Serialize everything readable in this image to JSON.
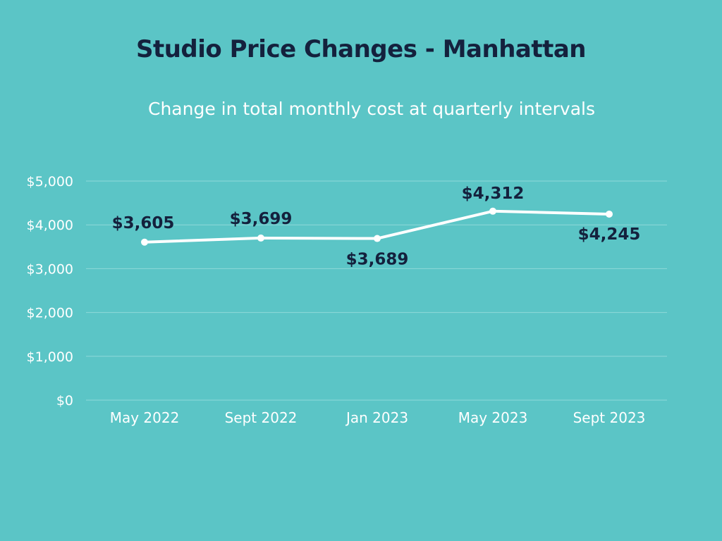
{
  "colors": {
    "background": "#5bc5c6",
    "title": "#14213d",
    "subtitle": "#ffffff",
    "line": "#ffffff",
    "grid": "#8fd9d9",
    "tick_text": "#ffffff",
    "data_label": "#14213d"
  },
  "chart_data": {
    "type": "line",
    "title": "Studio Price Changes - Manhattan",
    "subtitle": "Change in total monthly cost at quarterly intervals",
    "xlabel": "",
    "ylabel": "",
    "categories": [
      "May 2022",
      "Sept 2022",
      "Jan 2023",
      "May 2023",
      "Sept 2023"
    ],
    "series": [
      {
        "values": [
          3605,
          3699,
          3689,
          4312,
          4245
        ],
        "data_labels": [
          "$3,605",
          "$3,699",
          "$3,689",
          "$4,312",
          "$4,245"
        ]
      }
    ],
    "ylim": [
      0,
      5000
    ],
    "y_ticks": [
      0,
      1000,
      2000,
      3000,
      4000,
      5000
    ],
    "y_tick_labels": [
      "$0",
      "$1,000",
      "$2,000",
      "$3,000",
      "$4,000",
      "$5,000"
    ],
    "grid": true,
    "legend": "none"
  }
}
